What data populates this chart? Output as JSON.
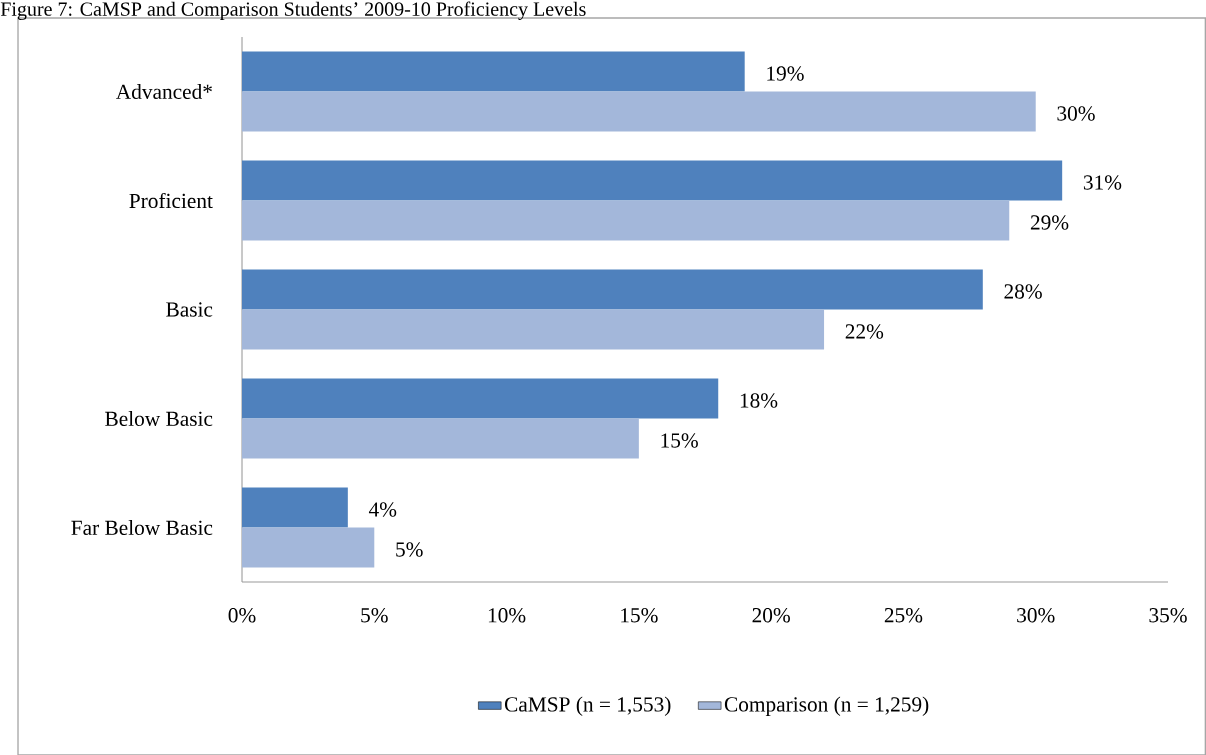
{
  "chart_data": {
    "type": "bar",
    "orientation": "horizontal",
    "title": "Figure 7: CaMSP and Comparison Students’ 2009-10 Proficiency Levels",
    "categories": [
      "Advanced*",
      "Proficient",
      "Basic",
      "Below Basic",
      "Far Below Basic"
    ],
    "series": [
      {
        "name": "CaMSP (n = 1,553)",
        "color": "#4f81bd",
        "values": [
          19,
          31,
          28,
          18,
          4
        ],
        "value_labels": [
          "19%",
          "31%",
          "28%",
          "18%",
          "4%"
        ]
      },
      {
        "name": "Comparison (n = 1,259)",
        "color": "#a3b7da",
        "values": [
          30,
          29,
          22,
          15,
          5
        ],
        "value_labels": [
          "30%",
          "29%",
          "22%",
          "15%",
          "5%"
        ]
      }
    ],
    "xlim": [
      0,
      35
    ],
    "xticks": [
      {
        "value": 0,
        "label": "0%"
      },
      {
        "value": 5,
        "label": "5%"
      },
      {
        "value": 10,
        "label": "10%"
      },
      {
        "value": 15,
        "label": "15%"
      },
      {
        "value": 20,
        "label": "20%"
      },
      {
        "value": 25,
        "label": "25%"
      },
      {
        "value": 30,
        "label": "30%"
      },
      {
        "value": 35,
        "label": "35%"
      }
    ],
    "grid": false,
    "legend": "bottom"
  }
}
